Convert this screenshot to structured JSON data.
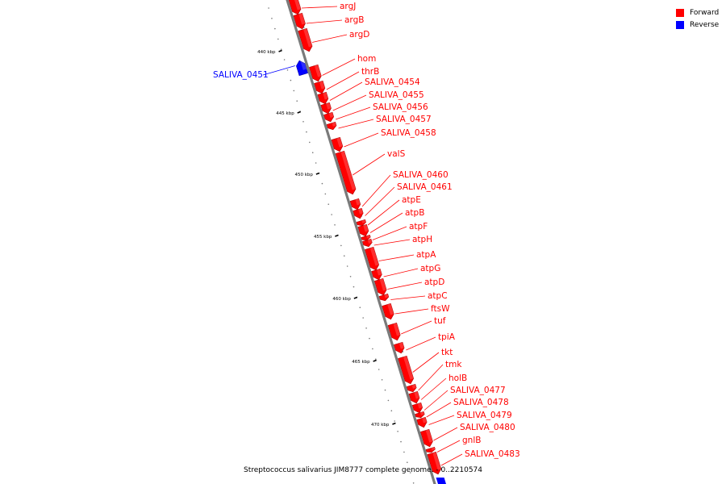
{
  "legend": {
    "forward_label": "Forward",
    "forward_color": "#ff0000",
    "reverse_label": "Reverse",
    "reverse_color": "#0000ff"
  },
  "caption": "Streptococcus salivarius JIM8777 complete genome. - 0..2210574",
  "axis": {
    "ticks": [
      "440 kbp",
      "445 kbp",
      "450 kbp",
      "455 kbp",
      "460 kbp",
      "465 kbp",
      "470 kbp"
    ]
  },
  "genes": [
    {
      "name": "argJ",
      "strand": "forward"
    },
    {
      "name": "argB",
      "strand": "forward"
    },
    {
      "name": "argD",
      "strand": "forward"
    },
    {
      "name": "SALIVA_0451",
      "strand": "reverse"
    },
    {
      "name": "hom",
      "strand": "forward"
    },
    {
      "name": "thrB",
      "strand": "forward"
    },
    {
      "name": "SALIVA_0454",
      "strand": "forward"
    },
    {
      "name": "SALIVA_0455",
      "strand": "forward"
    },
    {
      "name": "SALIVA_0456",
      "strand": "forward"
    },
    {
      "name": "SALIVA_0457",
      "strand": "forward"
    },
    {
      "name": "SALIVA_0458",
      "strand": "forward"
    },
    {
      "name": "valS",
      "strand": "forward"
    },
    {
      "name": "SALIVA_0460",
      "strand": "forward"
    },
    {
      "name": "SALIVA_0461",
      "strand": "forward"
    },
    {
      "name": "atpE",
      "strand": "forward"
    },
    {
      "name": "atpB",
      "strand": "forward"
    },
    {
      "name": "atpF",
      "strand": "forward"
    },
    {
      "name": "atpH",
      "strand": "forward"
    },
    {
      "name": "atpA",
      "strand": "forward"
    },
    {
      "name": "atpG",
      "strand": "forward"
    },
    {
      "name": "atpD",
      "strand": "forward"
    },
    {
      "name": "atpC",
      "strand": "forward"
    },
    {
      "name": "ftsW",
      "strand": "forward"
    },
    {
      "name": "tuf",
      "strand": "forward"
    },
    {
      "name": "tpiA",
      "strand": "forward"
    },
    {
      "name": "tkt",
      "strand": "forward"
    },
    {
      "name": "tmk",
      "strand": "forward"
    },
    {
      "name": "holB",
      "strand": "forward"
    },
    {
      "name": "SALIVA_0477",
      "strand": "forward"
    },
    {
      "name": "SALIVA_0478",
      "strand": "forward"
    },
    {
      "name": "SALIVA_0479",
      "strand": "forward"
    },
    {
      "name": "SALIVA_0480",
      "strand": "forward"
    },
    {
      "name": "gnlB",
      "strand": "forward"
    },
    {
      "name": "SALIVA_0483",
      "strand": "forward"
    }
  ]
}
